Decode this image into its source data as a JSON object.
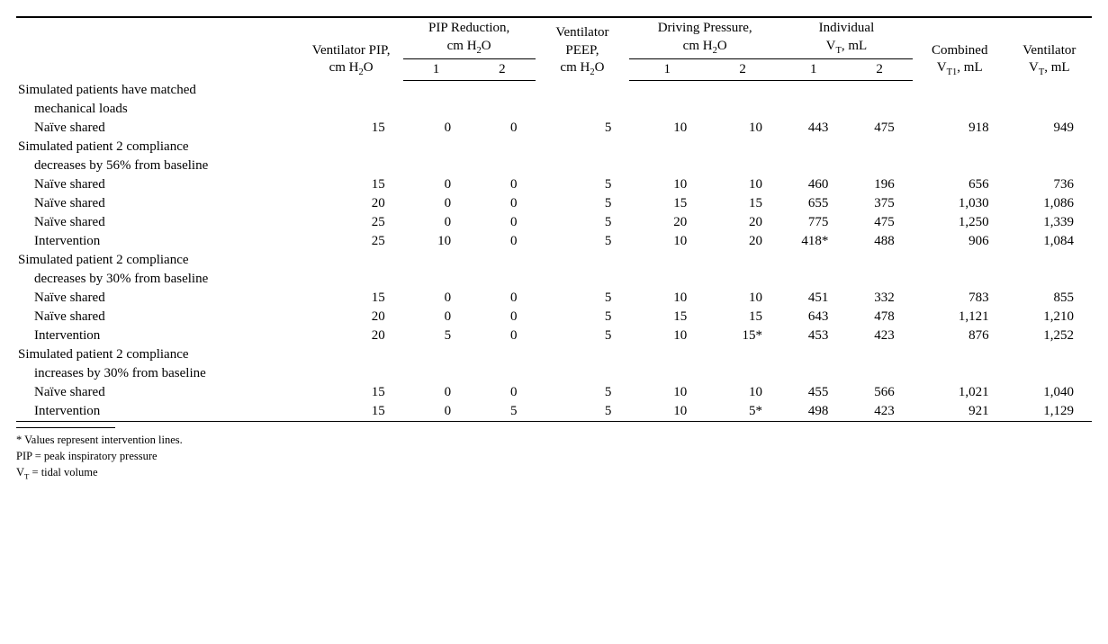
{
  "table": {
    "columns": {
      "label_col_width": "300px",
      "headers": {
        "vent_pip_l1": "Ventilator PIP,",
        "vent_pip_l2": "cm H",
        "vent_pip_l3": "O",
        "pip_red_l1": "PIP Reduction,",
        "pip_red_l2": "cm H",
        "pip_red_l3": "O",
        "vent_peep_l1": "Ventilator",
        "vent_peep_l2": "PEEP,",
        "vent_peep_l3": "cm H",
        "vent_peep_l4": "O",
        "drv_press_l1": "Driving Pressure,",
        "drv_press_l2": "cm H",
        "drv_press_l3": "O",
        "ind_vt_l1": "Individual",
        "ind_vt_l2a": "V",
        "ind_vt_l2b": ", mL",
        "comb_vt_l1": "Combined",
        "comb_vt_l2a": "V",
        "comb_vt_l2b": ", mL",
        "vent_vt_l1": "Ventilator",
        "vent_vt_l2a": "V",
        "vent_vt_l2b": ", mL",
        "sub_1": "1",
        "sub_2": "2"
      }
    },
    "sections": [
      {
        "title_l1": "Simulated patients have matched",
        "title_l2": "mechanical loads",
        "rows": [
          {
            "label": "Naïve shared",
            "vals": [
              "15",
              "0",
              "0",
              "5",
              "10",
              "10",
              "443",
              "475",
              "918",
              "949"
            ]
          }
        ]
      },
      {
        "title_l1": "Simulated patient 2 compliance",
        "title_l2": "decreases by 56% from baseline",
        "rows": [
          {
            "label": "Naïve shared",
            "vals": [
              "15",
              "0",
              "0",
              "5",
              "10",
              "10",
              "460",
              "196",
              "656",
              "736"
            ]
          },
          {
            "label": "Naïve shared",
            "vals": [
              "20",
              "0",
              "0",
              "5",
              "15",
              "15",
              "655",
              "375",
              "1,030",
              "1,086"
            ]
          },
          {
            "label": "Naïve shared",
            "vals": [
              "25",
              "0",
              "0",
              "5",
              "20",
              "20",
              "775",
              "475",
              "1,250",
              "1,339"
            ]
          },
          {
            "label": "Intervention",
            "vals": [
              "25",
              "10",
              "0",
              "5",
              "10",
              "20",
              "418*",
              "488",
              "906",
              "1,084"
            ]
          }
        ]
      },
      {
        "title_l1": "Simulated patient 2 compliance",
        "title_l2": "decreases by 30% from baseline",
        "rows": [
          {
            "label": "Naïve shared",
            "vals": [
              "15",
              "0",
              "0",
              "5",
              "10",
              "10",
              "451",
              "332",
              "783",
              "855"
            ]
          },
          {
            "label": "Naïve shared",
            "vals": [
              "20",
              "0",
              "0",
              "5",
              "15",
              "15",
              "643",
              "478",
              "1,121",
              "1,210"
            ]
          },
          {
            "label": "Intervention",
            "vals": [
              "20",
              "5",
              "0",
              "5",
              "10",
              "15*",
              "453",
              "423",
              "876",
              "1,252"
            ]
          }
        ]
      },
      {
        "title_l1": "Simulated patient 2 compliance",
        "title_l2": "increases by 30% from baseline",
        "rows": [
          {
            "label": "Naïve shared",
            "vals": [
              "15",
              "0",
              "0",
              "5",
              "10",
              "10",
              "455",
              "566",
              "1,021",
              "1,040"
            ]
          },
          {
            "label": "Intervention",
            "vals": [
              "15",
              "0",
              "5",
              "5",
              "10",
              "5*",
              "498",
              "423",
              "921",
              "1,129"
            ]
          }
        ]
      }
    ]
  },
  "footnotes": {
    "n1": "* Values represent intervention lines.",
    "n2": "PIP = peak inspiratory pressure",
    "n3_a": "V",
    "n3_b": " = tidal volume"
  }
}
